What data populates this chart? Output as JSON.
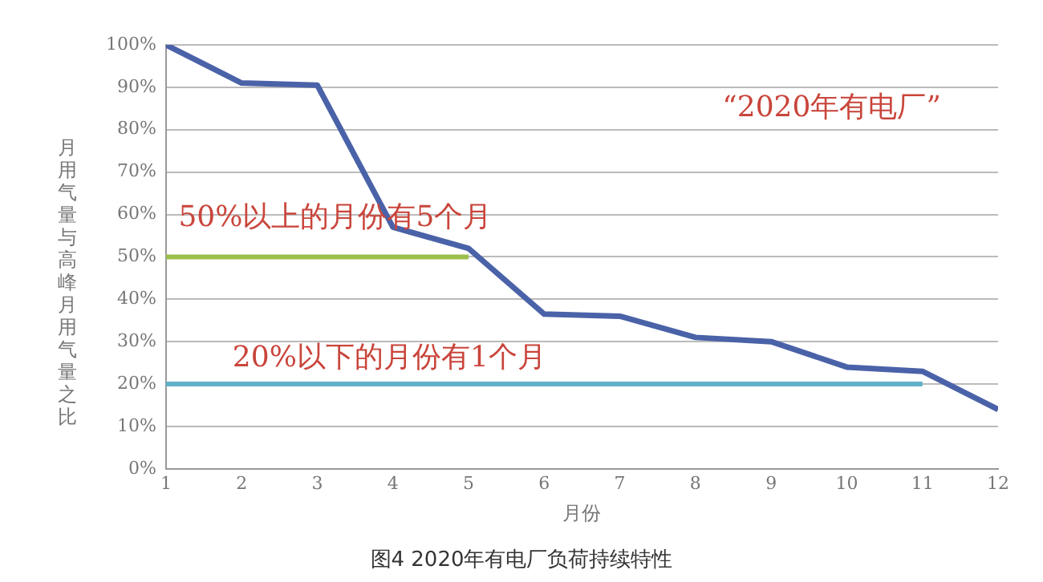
{
  "chart_data": {
    "type": "line",
    "title": "图4 2020年有电厂负荷持续特性",
    "xlabel": "月份",
    "ylabel": "月用气量与高峰月用气量之比",
    "x": [
      1,
      2,
      3,
      4,
      5,
      6,
      7,
      8,
      9,
      10,
      11,
      12
    ],
    "series": [
      {
        "color": "#4a62a8",
        "values": [
          100,
          91,
          90.5,
          57,
          52,
          36.5,
          36,
          31,
          30,
          24,
          23,
          14
        ]
      },
      {
        "color": "#9cbf4a",
        "values": [
          50,
          50,
          50,
          50,
          50,
          null,
          null,
          null,
          null,
          null,
          null,
          null
        ]
      },
      {
        "color": "#5fb0c8",
        "values": [
          20,
          20,
          20,
          20,
          20,
          20,
          20,
          20,
          20,
          20,
          20,
          null
        ]
      }
    ],
    "xlim": [
      1,
      12
    ],
    "xticks": [
      1,
      2,
      3,
      4,
      5,
      6,
      7,
      8,
      9,
      10,
      11,
      12
    ],
    "ylim": [
      0,
      100
    ],
    "yticks": [
      {
        "value": 0,
        "label": "0%"
      },
      {
        "value": 10,
        "label": "10%"
      },
      {
        "value": 20,
        "label": "20%"
      },
      {
        "value": 30,
        "label": "30%"
      },
      {
        "value": 40,
        "label": "40%"
      },
      {
        "value": 50,
        "label": "50%"
      },
      {
        "value": 60,
        "label": "60%"
      },
      {
        "value": 70,
        "label": "70%"
      },
      {
        "value": 80,
        "label": "80%"
      },
      {
        "value": 90,
        "label": "90%"
      },
      {
        "value": 100,
        "label": "100%"
      }
    ],
    "annotations": [
      "50%以上的月份有5个月",
      "20%以下的月份有1个月",
      "“2020年有电厂”"
    ],
    "grid": "y",
    "legend": false,
    "marker": "none",
    "line_style": "solid"
  }
}
